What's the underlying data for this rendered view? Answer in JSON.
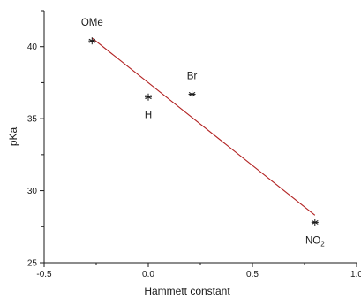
{
  "chart_data": {
    "type": "scatter",
    "title": "",
    "xlabel": "Hammett constant",
    "ylabel": "pKa",
    "xlim": [
      -0.5,
      1.0
    ],
    "ylim": [
      25,
      42.5
    ],
    "x_ticks": [
      -0.5,
      0,
      0.5,
      1.0
    ],
    "x_tick_labels": [
      "-0.5",
      "0.0",
      "0.5",
      "1.0"
    ],
    "y_ticks": [
      25,
      30,
      35,
      40
    ],
    "y_tick_labels": [
      "25",
      "30",
      "35",
      "40"
    ],
    "grid": false,
    "legend": "none",
    "marker": "asterisk",
    "series": [
      {
        "points": [
          {
            "label": "OMe",
            "label_main": "OMe",
            "label_sub": "",
            "label_pos": "above",
            "x": -0.27,
            "y": 40.4
          },
          {
            "label": "H",
            "label_main": "H",
            "label_sub": "",
            "label_pos": "below",
            "x": 0.0,
            "y": 36.5
          },
          {
            "label": "Br",
            "label_main": "Br",
            "label_sub": "",
            "label_pos": "above",
            "x": 0.21,
            "y": 36.7
          },
          {
            "label": "NO2",
            "label_main": "NO",
            "label_sub": "2",
            "label_pos": "below",
            "x": 0.8,
            "y": 27.8
          }
        ]
      }
    ],
    "fit_line": {
      "x": [
        -0.27,
        0.8
      ],
      "y": [
        40.6,
        28.3
      ],
      "color": "#b22222"
    },
    "colors": {
      "axis": "#1a1a1a",
      "marker": "#1a1a1a",
      "fit": "#b22222"
    }
  }
}
